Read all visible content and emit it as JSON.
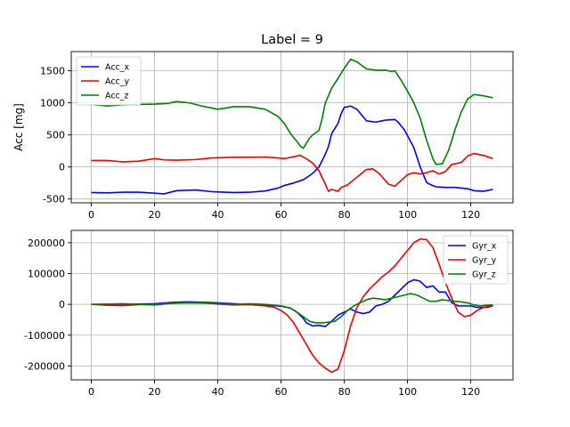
{
  "figure_title": "Label = 9",
  "colors": {
    "x": "#0000ff",
    "y": "#ee0000",
    "z": "#008000",
    "grid": "#b0b0b0"
  },
  "chart_data": [
    {
      "type": "line",
      "ylabel": "Acc [mg]",
      "xlim": [
        -6.35,
        133.35
      ],
      "ylim": [
        -560,
        1800
      ],
      "xticks": [
        0,
        20,
        40,
        60,
        80,
        100,
        120
      ],
      "yticks": [
        -500,
        0,
        500,
        1000,
        1500
      ],
      "grid": true,
      "legend_position": "upper-left",
      "series": [
        {
          "name": "Acc_x",
          "color": "#0000ff",
          "x": [
            0,
            5,
            10,
            15,
            20,
            23,
            27,
            33,
            38,
            45,
            50,
            55,
            59,
            61,
            64,
            67,
            68,
            70,
            72,
            74,
            75,
            76,
            78,
            79,
            80,
            82,
            84,
            87,
            90,
            93,
            96,
            97,
            99,
            102,
            104,
            106,
            107,
            109,
            112,
            115,
            119,
            121,
            124,
            127
          ],
          "y": [
            -400,
            -405,
            -395,
            -395,
            -410,
            -420,
            -370,
            -360,
            -385,
            -400,
            -395,
            -375,
            -330,
            -290,
            -250,
            -200,
            -170,
            -100,
            0,
            200,
            320,
            520,
            680,
            830,
            930,
            950,
            900,
            720,
            700,
            730,
            740,
            700,
            580,
            300,
            0,
            -240,
            -270,
            -310,
            -320,
            -320,
            -340,
            -370,
            -380,
            -350
          ]
        },
        {
          "name": "Acc_y",
          "color": "#ee0000",
          "x": [
            0,
            5,
            10,
            15,
            20,
            23,
            27,
            33,
            38,
            45,
            50,
            55,
            59,
            61,
            63,
            66,
            68,
            70,
            72,
            74,
            75,
            76,
            78,
            79,
            81,
            84,
            87,
            89,
            91,
            94,
            96,
            98,
            100,
            102,
            104,
            106,
            108,
            110,
            112,
            114,
            117,
            119,
            121,
            124,
            127
          ],
          "y": [
            100,
            100,
            80,
            90,
            130,
            110,
            105,
            115,
            140,
            150,
            150,
            155,
            140,
            130,
            150,
            180,
            130,
            60,
            -60,
            -270,
            -380,
            -350,
            -380,
            -320,
            -280,
            -160,
            -40,
            -30,
            -100,
            -270,
            -300,
            -210,
            -120,
            -90,
            -110,
            -90,
            -60,
            -110,
            -70,
            40,
            70,
            170,
            210,
            180,
            130
          ]
        },
        {
          "name": "Acc_z",
          "color": "#008000",
          "x": [
            0,
            5,
            10,
            15,
            20,
            24,
            27,
            31,
            35,
            40,
            45,
            50,
            55,
            59,
            61,
            63,
            65,
            66,
            67,
            69,
            70,
            72,
            73,
            74,
            76,
            78,
            80,
            82,
            84,
            87,
            90,
            93,
            95,
            96,
            98,
            100,
            102,
            104,
            106,
            108,
            109,
            111,
            113,
            115,
            117,
            119,
            121,
            124,
            127
          ],
          "y": [
            975,
            950,
            970,
            975,
            980,
            990,
            1020,
            1000,
            950,
            900,
            940,
            940,
            900,
            790,
            680,
            520,
            400,
            330,
            290,
            450,
            500,
            570,
            760,
            1000,
            1230,
            1380,
            1540,
            1680,
            1640,
            1530,
            1510,
            1510,
            1490,
            1500,
            1350,
            1180,
            1000,
            760,
            420,
            130,
            40,
            50,
            260,
            580,
            860,
            1060,
            1130,
            1110,
            1080
          ]
        }
      ]
    },
    {
      "type": "line",
      "ylabel": "",
      "xlim": [
        -6.35,
        133.35
      ],
      "ylim": [
        -245000,
        240000
      ],
      "xticks": [
        0,
        20,
        40,
        60,
        80,
        100,
        120
      ],
      "yticks": [
        -200000,
        -100000,
        0,
        100000,
        200000
      ],
      "grid": true,
      "legend_position": "upper-right",
      "series": [
        {
          "name": "Gyr_x",
          "color": "#0000ff",
          "x": [
            0,
            10,
            20,
            25,
            30,
            35,
            40,
            45,
            50,
            55,
            60,
            63,
            65,
            67,
            68,
            70,
            72,
            74,
            76,
            78,
            80,
            82,
            84,
            86,
            88,
            90,
            92,
            94,
            96,
            98,
            100,
            102,
            104,
            106,
            108,
            110,
            112,
            114,
            116,
            118,
            120,
            122,
            125,
            127
          ],
          "y": [
            0,
            0,
            2000,
            6000,
            8000,
            7000,
            5000,
            2000,
            -1000,
            -2000,
            -6000,
            -12000,
            -25000,
            -45000,
            -60000,
            -70000,
            -68000,
            -72000,
            -55000,
            -35000,
            -25000,
            -15000,
            -25000,
            -30000,
            -25000,
            -5000,
            0,
            10000,
            30000,
            50000,
            70000,
            80000,
            75000,
            55000,
            60000,
            40000,
            40000,
            5000,
            -5000,
            -5000,
            -5000,
            -10000,
            -10000,
            -5000
          ]
        },
        {
          "name": "Gyr_y",
          "color": "#ee0000",
          "x": [
            0,
            5,
            10,
            15,
            20,
            25,
            30,
            35,
            40,
            45,
            50,
            55,
            58,
            60,
            62,
            64,
            66,
            68,
            70,
            72,
            74,
            76,
            78,
            80,
            82,
            84,
            86,
            88,
            90,
            92,
            94,
            96,
            98,
            100,
            102,
            104,
            106,
            108,
            110,
            112,
            114,
            116,
            118,
            120,
            122,
            124,
            127
          ],
          "y": [
            0,
            -3000,
            -4000,
            -1000,
            0,
            3000,
            6000,
            6000,
            1000,
            -2000,
            -1000,
            -5000,
            -10000,
            -20000,
            -35000,
            -60000,
            -95000,
            -130000,
            -165000,
            -190000,
            -207000,
            -220000,
            -210000,
            -150000,
            -70000,
            -10000,
            25000,
            50000,
            70000,
            90000,
            105000,
            125000,
            150000,
            175000,
            200000,
            212000,
            210000,
            185000,
            130000,
            70000,
            20000,
            -25000,
            -40000,
            -35000,
            -20000,
            -10000,
            -3000
          ]
        },
        {
          "name": "Gyr_z",
          "color": "#008000",
          "x": [
            0,
            10,
            20,
            25,
            30,
            35,
            40,
            45,
            50,
            55,
            60,
            63,
            65,
            67,
            69,
            71,
            73,
            75,
            77,
            79,
            81,
            83,
            85,
            87,
            89,
            91,
            93,
            95,
            97,
            99,
            101,
            103,
            105,
            107,
            109,
            111,
            113,
            115,
            117,
            119,
            121,
            123,
            125,
            127
          ],
          "y": [
            0,
            2000,
            -2000,
            3000,
            5000,
            4000,
            2000,
            0,
            2000,
            0,
            -5000,
            -12000,
            -25000,
            -40000,
            -55000,
            -60000,
            -60000,
            -58000,
            -55000,
            -40000,
            -20000,
            -5000,
            5000,
            15000,
            20000,
            18000,
            15000,
            20000,
            25000,
            30000,
            35000,
            30000,
            20000,
            10000,
            10000,
            15000,
            12000,
            10000,
            8000,
            5000,
            -2000,
            -5000,
            -3000,
            -2000
          ]
        }
      ]
    }
  ]
}
